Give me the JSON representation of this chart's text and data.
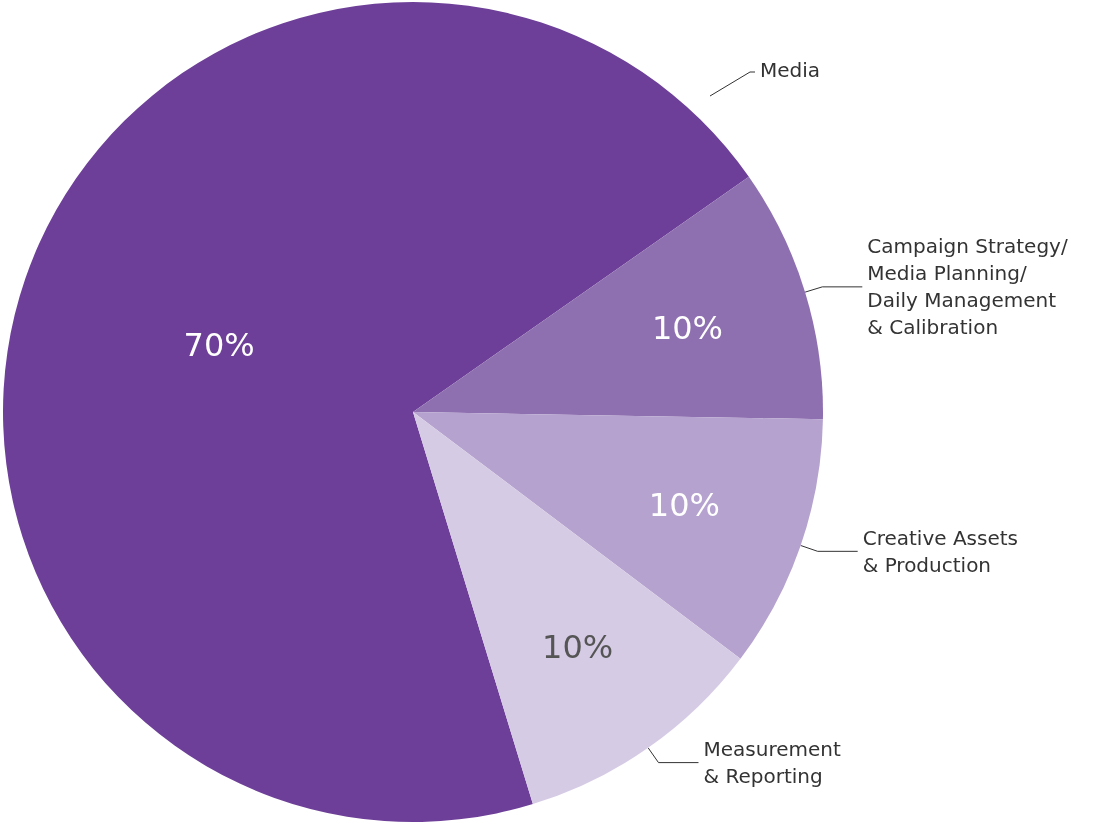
{
  "chart_data": {
    "type": "pie",
    "categories": [
      "Media",
      "Campaign Strategy/\nMedia Planning/\nDaily Management\n& Calibration",
      "Creative Assets\n& Production",
      "Measurement\n& Reporting"
    ],
    "values": [
      70,
      10,
      10,
      10
    ],
    "value_labels": [
      "70%",
      "10%",
      "10%",
      "10%"
    ],
    "colors": [
      "#6d3f98",
      "#8e6fb0",
      "#b5a2cf",
      "#d6cbe5"
    ]
  }
}
